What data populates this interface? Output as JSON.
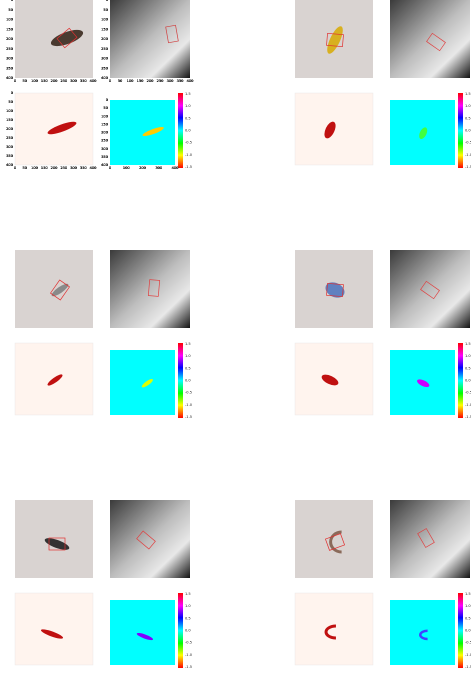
{
  "axes": {
    "image_ticks": [
      "0",
      "50",
      "100",
      "150",
      "200",
      "250",
      "300",
      "350",
      "400"
    ],
    "map_ticks": [
      "0",
      "100",
      "200",
      "300",
      "400"
    ],
    "colorbar_ticks": [
      "1.5",
      "1.0",
      "0.5",
      "0.0",
      "-0.5",
      "-1.0",
      "-1.5"
    ]
  }
}
